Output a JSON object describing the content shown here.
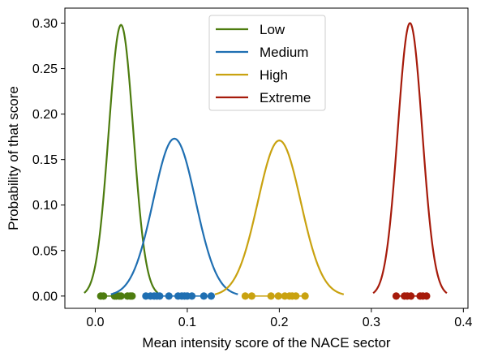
{
  "chart_data": {
    "type": "line",
    "title": "",
    "xlabel": "Mean intensity score of the NACE sector",
    "ylabel": "Probability of that score",
    "xlim": [
      -0.033,
      0.405
    ],
    "ylim": [
      -0.0135,
      0.3165
    ],
    "xticks": [
      {
        "value": 0.0,
        "label": "0.0"
      },
      {
        "value": 0.1,
        "label": "0.1"
      },
      {
        "value": 0.2,
        "label": "0.2"
      },
      {
        "value": 0.3,
        "label": "0.3"
      },
      {
        "value": 0.4,
        "label": "0.4"
      }
    ],
    "yticks": [
      {
        "value": 0.0,
        "label": "0.00"
      },
      {
        "value": 0.05,
        "label": "0.05"
      },
      {
        "value": 0.1,
        "label": "0.10"
      },
      {
        "value": 0.15,
        "label": "0.15"
      },
      {
        "value": 0.2,
        "label": "0.20"
      },
      {
        "value": 0.25,
        "label": "0.25"
      },
      {
        "value": 0.3,
        "label": "0.30"
      }
    ],
    "grid": false,
    "legend": "top-center",
    "series": [
      {
        "name": "Low",
        "color": "#4d7c0f",
        "curve": {
          "mean": 0.028,
          "sd": 0.0134,
          "peak": 0.298,
          "x_range": [
            -0.012,
            0.068
          ]
        },
        "points": [
          0.006,
          0.009,
          0.021,
          0.023,
          0.026,
          0.028,
          0.035,
          0.038,
          0.04
        ]
      },
      {
        "name": "Medium",
        "color": "#1f6fb2",
        "curve": {
          "mean": 0.086,
          "sd": 0.023,
          "peak": 0.173,
          "x_range": [
            0.017,
            0.155
          ]
        },
        "points": [
          0.055,
          0.06,
          0.064,
          0.067,
          0.07,
          0.08,
          0.09,
          0.094,
          0.097,
          0.1,
          0.105,
          0.118,
          0.126
        ]
      },
      {
        "name": "High",
        "color": "#c9a210",
        "curve": {
          "mean": 0.2,
          "sd": 0.0233,
          "peak": 0.171,
          "x_range": [
            0.13,
            0.27
          ]
        },
        "points": [
          0.163,
          0.17,
          0.191,
          0.199,
          0.206,
          0.211,
          0.214,
          0.218,
          0.228
        ]
      },
      {
        "name": "Extreme",
        "color": "#a61b0b",
        "curve": {
          "mean": 0.342,
          "sd": 0.0133,
          "peak": 0.3,
          "x_range": [
            0.302,
            0.382
          ]
        },
        "points": [
          0.327,
          0.336,
          0.339,
          0.343,
          0.353,
          0.356,
          0.36
        ]
      }
    ]
  }
}
